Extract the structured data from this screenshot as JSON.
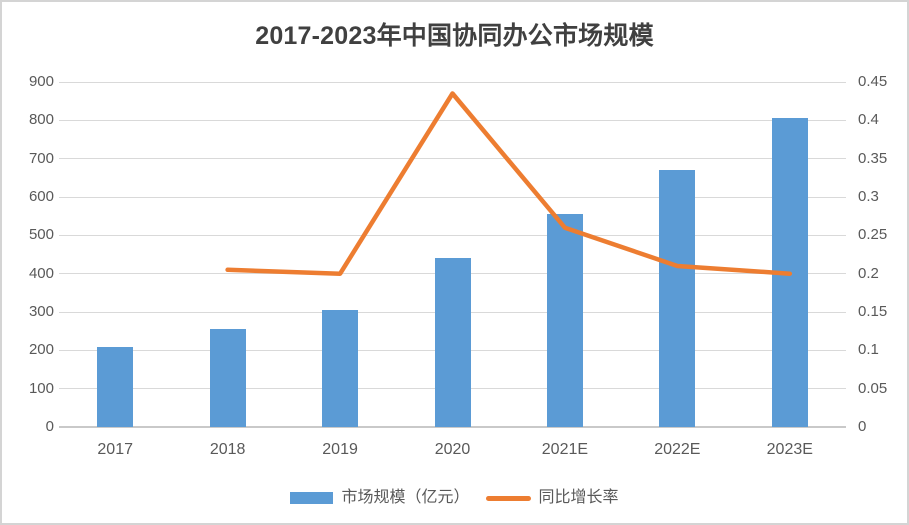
{
  "chart_data": {
    "type": "bar",
    "combo": "bar+line",
    "title": "2017-2023年中国协同办公市场规模",
    "categories": [
      "2017",
      "2018",
      "2019",
      "2020",
      "2021E",
      "2022E",
      "2023E"
    ],
    "series": [
      {
        "name": "市场规模（亿元）",
        "type": "bar",
        "axis": "left",
        "values": [
          210,
          255,
          306,
          440,
          555,
          670,
          805
        ]
      },
      {
        "name": "同比增长率",
        "type": "line",
        "axis": "right",
        "values": [
          null,
          0.205,
          0.2,
          0.435,
          0.26,
          0.21,
          0.2
        ]
      }
    ],
    "left_axis": {
      "min": 0,
      "max": 900,
      "step": 100,
      "ticks": [
        "0",
        "100",
        "200",
        "300",
        "400",
        "500",
        "600",
        "700",
        "800",
        "900"
      ]
    },
    "right_axis": {
      "min": 0,
      "max": 0.45,
      "step": 0.05,
      "ticks": [
        "0",
        "0.05",
        "0.1",
        "0.15",
        "0.2",
        "0.25",
        "0.3",
        "0.35",
        "0.4",
        "0.45"
      ]
    },
    "grid": true,
    "legend_position": "bottom"
  },
  "legend": {
    "items": [
      {
        "label": "市场规模（亿元）",
        "swatch": "bar"
      },
      {
        "label": "同比增长率",
        "swatch": "line"
      }
    ]
  },
  "colors": {
    "bar": "#5b9bd5",
    "line": "#ed7d31",
    "grid": "#d9d9d9",
    "axis_text": "#595959",
    "title_text": "#404040",
    "background": "#ffffff",
    "border": "#d4d4d4"
  }
}
